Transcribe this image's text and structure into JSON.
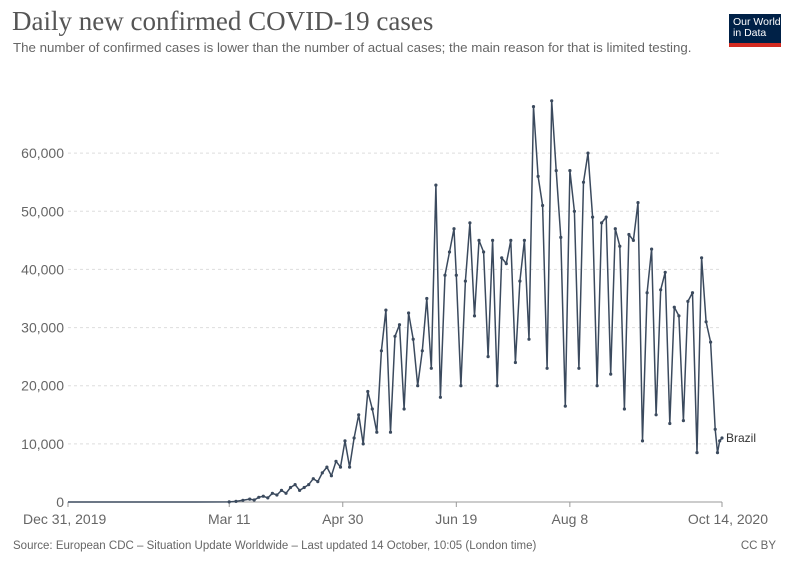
{
  "header": {
    "title": "Daily new confirmed COVID-19 cases",
    "subtitle": "The number of confirmed cases is lower than the number of actual cases; the main reason for that is limited testing.",
    "logo_text": "Our World\nin Data"
  },
  "footer": {
    "source": "Source: European CDC – Situation Update Worldwide – Last updated 14 October, 10:05 (London time)",
    "license": "CC BY"
  },
  "colors": {
    "line": "#3b4a5e",
    "grid": "#dddddd",
    "axis": "#999999",
    "text": "#666666",
    "logo_bg": "#002147",
    "logo_bar": "#d42b21"
  },
  "chart_data": {
    "type": "line",
    "title": "Daily new confirmed COVID-19 cases",
    "subtitle": "The number of confirmed cases is lower than the number of actual cases; the main reason for that is limited testing.",
    "xlabel": "",
    "ylabel": "",
    "grid": "horizontal dashed",
    "xlim": [
      "2019-12-31",
      "2020-10-14"
    ],
    "ylim": [
      0,
      70000
    ],
    "yticks": [
      0,
      10000,
      20000,
      30000,
      40000,
      50000,
      60000
    ],
    "ytick_labels": [
      "0",
      "10,000",
      "20,000",
      "30,000",
      "40,000",
      "50,000",
      "60,000"
    ],
    "xticks": [
      "2019-12-31",
      "2020-03-11",
      "2020-04-30",
      "2020-06-19",
      "2020-08-08",
      "2020-10-14"
    ],
    "xtick_labels": [
      "Dec 31, 2019",
      "Mar 11",
      "Apr 30",
      "Jun 19",
      "Aug 8",
      "Oct 14, 2020"
    ],
    "series": [
      {
        "name": "Brazil",
        "x": [
          "2019-12-31",
          "2020-01-31",
          "2020-02-25",
          "2020-03-11",
          "2020-03-14",
          "2020-03-17",
          "2020-03-20",
          "2020-03-22",
          "2020-03-24",
          "2020-03-26",
          "2020-03-28",
          "2020-03-30",
          "2020-04-01",
          "2020-04-03",
          "2020-04-05",
          "2020-04-07",
          "2020-04-09",
          "2020-04-11",
          "2020-04-13",
          "2020-04-15",
          "2020-04-17",
          "2020-04-19",
          "2020-04-21",
          "2020-04-23",
          "2020-04-25",
          "2020-04-27",
          "2020-04-29",
          "2020-05-01",
          "2020-05-03",
          "2020-05-05",
          "2020-05-07",
          "2020-05-09",
          "2020-05-11",
          "2020-05-13",
          "2020-05-15",
          "2020-05-17",
          "2020-05-19",
          "2020-05-21",
          "2020-05-23",
          "2020-05-25",
          "2020-05-27",
          "2020-05-29",
          "2020-05-31",
          "2020-06-02",
          "2020-06-04",
          "2020-06-06",
          "2020-06-08",
          "2020-06-10",
          "2020-06-12",
          "2020-06-14",
          "2020-06-16",
          "2020-06-18",
          "2020-06-19",
          "2020-06-21",
          "2020-06-23",
          "2020-06-25",
          "2020-06-27",
          "2020-06-29",
          "2020-07-01",
          "2020-07-03",
          "2020-07-05",
          "2020-07-07",
          "2020-07-09",
          "2020-07-11",
          "2020-07-13",
          "2020-07-15",
          "2020-07-17",
          "2020-07-19",
          "2020-07-21",
          "2020-07-23",
          "2020-07-25",
          "2020-07-27",
          "2020-07-29",
          "2020-07-31",
          "2020-08-02",
          "2020-08-04",
          "2020-08-06",
          "2020-08-08",
          "2020-08-10",
          "2020-08-12",
          "2020-08-14",
          "2020-08-16",
          "2020-08-18",
          "2020-08-20",
          "2020-08-22",
          "2020-08-24",
          "2020-08-26",
          "2020-08-28",
          "2020-08-30",
          "2020-09-01",
          "2020-09-03",
          "2020-09-05",
          "2020-09-07",
          "2020-09-09",
          "2020-09-11",
          "2020-09-13",
          "2020-09-15",
          "2020-09-17",
          "2020-09-19",
          "2020-09-21",
          "2020-09-23",
          "2020-09-25",
          "2020-09-27",
          "2020-09-29",
          "2020-10-01",
          "2020-10-03",
          "2020-10-05",
          "2020-10-07",
          "2020-10-09",
          "2020-10-11",
          "2020-10-12",
          "2020-10-13",
          "2020-10-14"
        ],
        "values": [
          0,
          0,
          0,
          20,
          100,
          300,
          500,
          350,
          800,
          1000,
          700,
          1500,
          1200,
          2000,
          1500,
          2500,
          3000,
          2000,
          2500,
          3000,
          4000,
          3500,
          5000,
          6000,
          4500,
          7000,
          6000,
          10500,
          6000,
          11000,
          15000,
          10000,
          19000,
          16000,
          12000,
          26000,
          33000,
          12000,
          28500,
          30500,
          16000,
          32500,
          28000,
          20000,
          26000,
          35000,
          23000,
          54500,
          18000,
          39000,
          43000,
          47000,
          39000,
          20000,
          38000,
          48000,
          32000,
          45000,
          43000,
          25000,
          45000,
          20000,
          42000,
          41000,
          45000,
          24000,
          38000,
          45000,
          28000,
          68000,
          56000,
          51000,
          23000,
          69000,
          57000,
          45500,
          16500,
          57000,
          50000,
          23000,
          55000,
          60000,
          49000,
          20000,
          48000,
          49000,
          22000,
          47000,
          44000,
          16000,
          46000,
          45000,
          51500,
          10500,
          36000,
          43500,
          15000,
          36500,
          39500,
          13500,
          33500,
          32000,
          14000,
          34500,
          36000,
          8500,
          42000,
          31000,
          27500,
          12500,
          8500,
          10500,
          11000
        ]
      }
    ],
    "annotations": [
      "Brazil"
    ]
  }
}
